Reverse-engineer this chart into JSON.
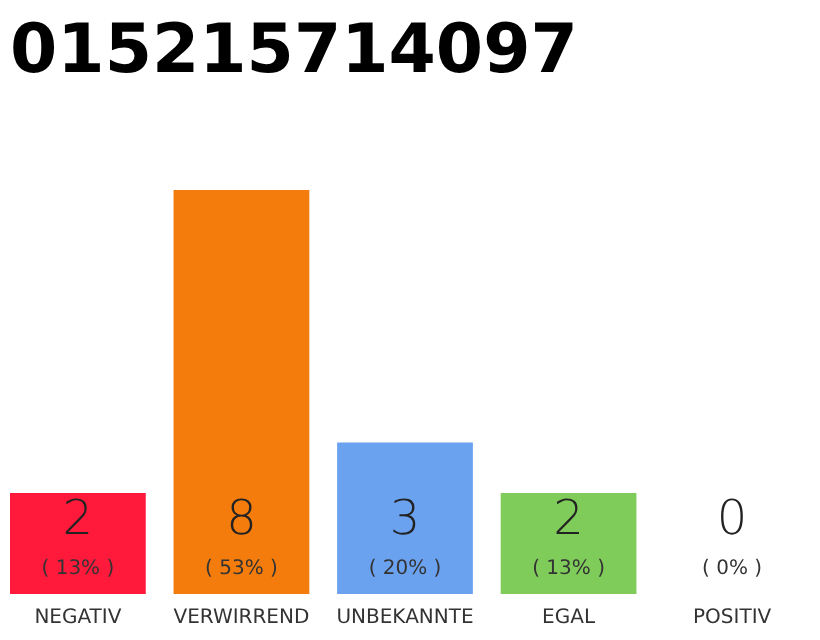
{
  "chart_data": {
    "type": "bar",
    "title": "015215714097",
    "categories": [
      "NEGATIV",
      "VERWIRREND",
      "UNBEKANNTE",
      "EGAL",
      "POSITIV"
    ],
    "values": [
      2,
      8,
      3,
      2,
      0
    ],
    "colors": [
      "#ff1a3c",
      "#f47c0c",
      "#6aa2f0",
      "#80cc5b",
      "#cccccc"
    ],
    "data_labels": true,
    "annotations": [
      "( 13% )",
      "( 53% )",
      "( 20% )",
      "( 13% )",
      "( 0% )"
    ]
  }
}
